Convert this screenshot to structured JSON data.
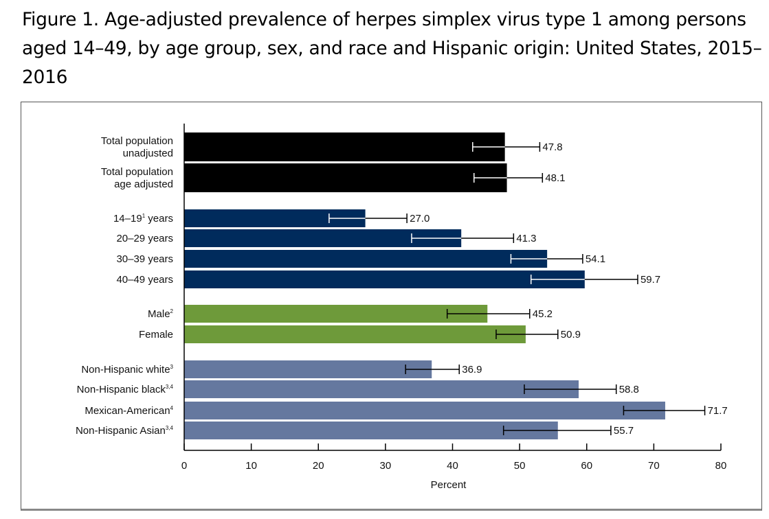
{
  "chart_data": {
    "type": "bar",
    "orientation": "horizontal",
    "title": "Figure 1. Age-adjusted prevalence of herpes simplex virus type 1 among persons aged 14–49, by age group, sex, and race and Hispanic origin: United States, 2015–2016",
    "xlabel": "Percent",
    "ylabel": "",
    "xlim": [
      0,
      80
    ],
    "xticks": [
      "0",
      "10",
      "20",
      "30",
      "40",
      "50",
      "60",
      "70",
      "80"
    ],
    "grid": false,
    "colors": {
      "total": "#000000",
      "age": "#002b5c",
      "sex": "#6e9a3a",
      "race": "#65789f"
    },
    "categories": [
      {
        "lines": [
          "Total population",
          "unadjusted"
        ],
        "sup": "",
        "group": "total",
        "value": 47.8,
        "label": "47.8",
        "ci": [
          43.0,
          53.0
        ]
      },
      {
        "lines": [
          "Total population",
          "age adjusted"
        ],
        "sup": "",
        "group": "total",
        "value": 48.1,
        "label": "48.1",
        "ci": [
          43.2,
          53.4
        ]
      },
      {
        "lines": [
          "14–19",
          "years"
        ],
        "sup": "1",
        "group": "age",
        "value": 27.0,
        "label": "27.0",
        "ci": [
          21.6,
          33.2
        ]
      },
      {
        "lines": [
          "20–29 years"
        ],
        "sup": "",
        "group": "age",
        "value": 41.3,
        "label": "41.3",
        "ci": [
          33.9,
          49.1
        ]
      },
      {
        "lines": [
          "30–39 years"
        ],
        "sup": "",
        "group": "age",
        "value": 54.1,
        "label": "54.1",
        "ci": [
          48.7,
          59.4
        ]
      },
      {
        "lines": [
          "40–49 years"
        ],
        "sup": "",
        "group": "age",
        "value": 59.7,
        "label": "59.7",
        "ci": [
          51.7,
          67.6
        ]
      },
      {
        "lines": [
          "Male"
        ],
        "sup": "2",
        "group": "sex",
        "value": 45.2,
        "label": "45.2",
        "ci": [
          39.2,
          51.5
        ]
      },
      {
        "lines": [
          "Female"
        ],
        "sup": "",
        "group": "sex",
        "value": 50.9,
        "label": "50.9",
        "ci": [
          46.5,
          55.7
        ]
      },
      {
        "lines": [
          "Non-Hispanic white"
        ],
        "sup": "3",
        "group": "race",
        "value": 36.9,
        "label": "36.9",
        "ci": [
          33.0,
          41.0
        ]
      },
      {
        "lines": [
          "Non-Hispanic black"
        ],
        "sup": "3,4",
        "group": "race",
        "value": 58.8,
        "label": "58.8",
        "ci": [
          50.7,
          64.4
        ]
      },
      {
        "lines": [
          "Mexican-American"
        ],
        "sup": "4",
        "group": "race",
        "value": 71.7,
        "label": "71.7",
        "ci": [
          65.5,
          77.6
        ]
      },
      {
        "lines": [
          "Non-Hispanic Asian"
        ],
        "sup": "3,4",
        "group": "race",
        "value": 55.7,
        "label": "55.7",
        "ci": [
          47.6,
          63.6
        ]
      }
    ]
  }
}
